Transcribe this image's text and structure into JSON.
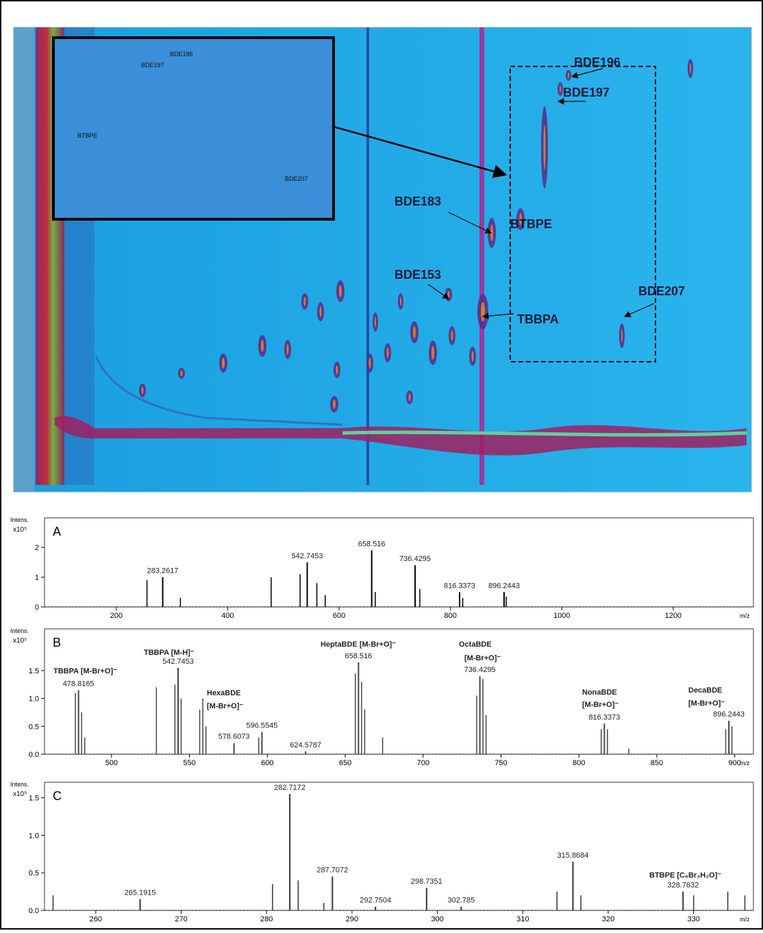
{
  "chart_data": [
    {
      "type": "heatmap-image",
      "annotations": [
        "BDE196",
        "BDE197",
        "BDE183",
        "BTBPE",
        "BDE153",
        "TBBPA",
        "BDE207"
      ],
      "inset_annotations": [
        "BDE196",
        "BDE197",
        "BTBPE",
        "BDE207"
      ]
    },
    {
      "type": "spectrum",
      "panel_label": "A",
      "y_label": "Intens.",
      "y_scale": "x10⁵",
      "x_label": "m/z",
      "color": "#000000",
      "xlim": [
        71,
        1344
      ],
      "xticks": [
        200,
        400,
        600,
        800,
        1000,
        1200
      ],
      "ylim": [
        0,
        2.9
      ],
      "yticks": [
        0,
        1,
        2
      ],
      "x": [
        283.2617,
        542.7453,
        658.516,
        736.4295,
        816.3373,
        896.2443
      ],
      "values": [
        1.0,
        1.5,
        1.9,
        1.4,
        0.5,
        0.5
      ],
      "minor_x": [
        255,
        315,
        478,
        530,
        560,
        575,
        665,
        745,
        822,
        900
      ],
      "minor_values": [
        0.9,
        0.3,
        1.0,
        1.1,
        0.8,
        0.4,
        0.5,
        0.6,
        0.3,
        0.35
      ]
    },
    {
      "type": "spectrum",
      "panel_label": "B",
      "y_label": "Intens.",
      "y_scale": "x10⁵",
      "x_label": "m/z",
      "color": "#444444",
      "xlim": [
        457,
        912
      ],
      "xticks": [
        500,
        550,
        600,
        650,
        700,
        750,
        800,
        850,
        900
      ],
      "ylim": [
        0,
        2.2
      ],
      "yticks": [
        {
          "value": 0,
          "label": "0.0"
        },
        0.5,
        {
          "value": 1,
          "label": "1.0"
        },
        1.5
      ],
      "x": [
        478.8165,
        542.7453,
        578.6073,
        596.5545,
        624.5787,
        658.516,
        736.4295,
        816.3373,
        896.2443
      ],
      "values": [
        1.15,
        1.55,
        0.2,
        0.4,
        0.05,
        1.65,
        1.4,
        0.55,
        0.6
      ],
      "minor_x": [
        476.8,
        480.8,
        482.8,
        528.8,
        540.7,
        544.7,
        556.6,
        558.6,
        560.6,
        594.5,
        656.5,
        660.5,
        662.5,
        674,
        734.4,
        738.4,
        740.4,
        814.3,
        818.3,
        832,
        894.2,
        898.2
      ],
      "minor_values": [
        1.1,
        0.75,
        0.3,
        1.2,
        1.25,
        1.0,
        0.8,
        1.0,
        0.5,
        0.3,
        1.45,
        1.3,
        0.8,
        0.3,
        1.05,
        1.35,
        0.7,
        0.45,
        0.45,
        0.1,
        0.45,
        0.5
      ],
      "annotations": [
        "TBBPA [M-Br+O]⁻",
        "TBBPA [M-H]⁻",
        "HexaBDE",
        "[M-Br+O]⁻",
        "HeptaBDE [M-Br+O]⁻",
        "OctaBDE",
        "[M-Br+O]⁻",
        "NonaBDE",
        "[M-Br+O]⁻",
        "DecaBDE",
        "[M-Br+O]⁻"
      ]
    },
    {
      "type": "spectrum",
      "panel_label": "C",
      "y_label": "Intens.",
      "y_scale": "x10⁵",
      "x_label": "m/z",
      "color": "#333333",
      "xlim": [
        254,
        337
      ],
      "xticks": [
        260,
        270,
        280,
        290,
        300,
        310,
        320,
        330
      ],
      "ylim": [
        0,
        1.67
      ],
      "yticks": [
        {
          "value": 0,
          "label": "0.0"
        },
        0.5,
        {
          "value": 1,
          "label": "1.0"
        },
        1.5
      ],
      "x": [
        265.1915,
        282.7172,
        287.7072,
        292.7504,
        298.7351,
        302.785,
        315.8684,
        328.7632
      ],
      "values": [
        0.15,
        1.55,
        0.45,
        0.05,
        0.3,
        0.05,
        0.65,
        0.25
      ],
      "minor_x": [
        255,
        280.7,
        283.7,
        286.7,
        314,
        316.8,
        330,
        334,
        336
      ],
      "minor_values": [
        0.2,
        0.35,
        0.4,
        0.1,
        0.25,
        0.2,
        0.2,
        0.25,
        0.2
      ],
      "annotations": [
        "BTBPE [C₆Br₃H₂O]⁻"
      ]
    }
  ]
}
